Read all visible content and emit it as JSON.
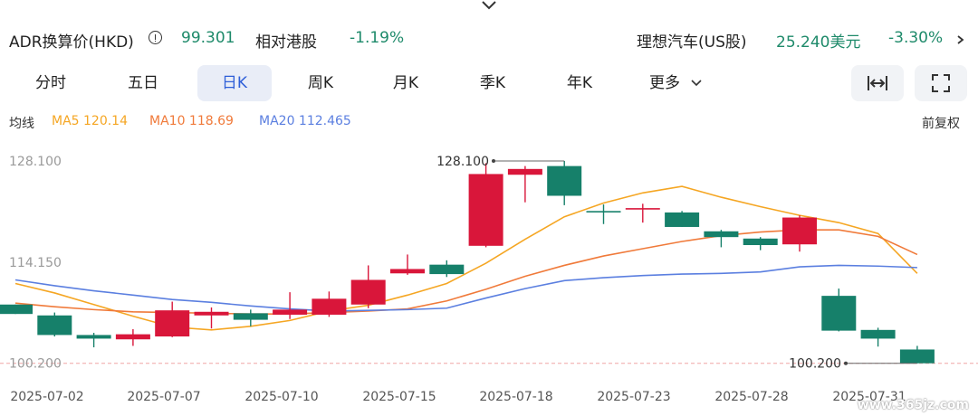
{
  "header": {
    "adr_label": "ADR换算价(HKD)",
    "adr_value": "99.301",
    "relative_label": "相对港股",
    "relative_value": "-1.19%",
    "us_stock_label": "理想汽车(US股)",
    "us_price": "25.240美元",
    "us_change": "-3.30%",
    "chevron_icon": "chevron-down-icon"
  },
  "tabs": [
    "分时",
    "五日",
    "日K",
    "周K",
    "月K",
    "季K",
    "年K",
    "更多"
  ],
  "active_tab": "日K",
  "tools": {
    "fit_icon": "fit-width-icon",
    "fullscreen_icon": "fullscreen-icon"
  },
  "ma": {
    "label": "均线",
    "ma5": "MA5 120.14",
    "ma10": "MA10 118.69",
    "ma20": "MA20 112.465",
    "adjust_label": "前复权",
    "colors": {
      "ma5": "#f5a623",
      "ma10": "#f07a3a",
      "ma20": "#5b7fe0"
    }
  },
  "watermark": "www.365jz.com",
  "chart_data": {
    "type": "candlestick",
    "ytick_labels": [
      "128.100",
      "114.150",
      "100.200"
    ],
    "yticks": [
      128.1,
      114.15,
      100.2
    ],
    "ylim": [
      99.0,
      130.5
    ],
    "xtick_labels": [
      "2025-07-02",
      "2025-07-07",
      "2025-07-10",
      "2025-07-15",
      "2025-07-18",
      "2025-07-23",
      "2025-07-28",
      "2025-07-31"
    ],
    "high_label": "128.100",
    "low_label": "100.200",
    "colors": {
      "up": "#d9163a",
      "down": "#16806a"
    },
    "candles": [
      {
        "o": 108.3,
        "c": 107.0,
        "h": 108.3,
        "l": 107.0
      },
      {
        "o": 106.8,
        "c": 104.1,
        "h": 107.2,
        "l": 103.9
      },
      {
        "o": 104.1,
        "c": 103.6,
        "h": 104.4,
        "l": 102.4
      },
      {
        "o": 103.5,
        "c": 104.2,
        "h": 104.9,
        "l": 102.6
      },
      {
        "o": 103.9,
        "c": 107.5,
        "h": 108.7,
        "l": 103.8
      },
      {
        "o": 106.8,
        "c": 107.3,
        "h": 107.9,
        "l": 105.0
      },
      {
        "o": 107.1,
        "c": 106.2,
        "h": 107.6,
        "l": 105.3
      },
      {
        "o": 106.9,
        "c": 107.6,
        "h": 110.0,
        "l": 106.3
      },
      {
        "o": 106.9,
        "c": 109.1,
        "h": 110.1,
        "l": 106.6
      },
      {
        "o": 108.3,
        "c": 111.7,
        "h": 113.7,
        "l": 107.8
      },
      {
        "o": 112.6,
        "c": 113.2,
        "h": 115.2,
        "l": 112.4
      },
      {
        "o": 113.8,
        "c": 112.5,
        "h": 114.4,
        "l": 112.1
      },
      {
        "o": 116.4,
        "c": 126.3,
        "h": 127.8,
        "l": 116.2
      },
      {
        "o": 126.2,
        "c": 127.0,
        "h": 127.4,
        "l": 122.4
      },
      {
        "o": 127.4,
        "c": 123.3,
        "h": 128.1,
        "l": 122.0
      },
      {
        "o": 121.2,
        "c": 121.0,
        "h": 122.1,
        "l": 119.4
      },
      {
        "o": 121.4,
        "c": 121.6,
        "h": 122.2,
        "l": 119.6
      },
      {
        "o": 121.0,
        "c": 119.0,
        "h": 121.2,
        "l": 119.0
      },
      {
        "o": 118.4,
        "c": 117.6,
        "h": 118.6,
        "l": 116.2
      },
      {
        "o": 117.4,
        "c": 116.5,
        "h": 117.6,
        "l": 115.8
      },
      {
        "o": 116.6,
        "c": 120.3,
        "h": 120.6,
        "l": 115.6
      },
      {
        "o": 109.5,
        "c": 104.7,
        "h": 110.5,
        "l": 104.6
      },
      {
        "o": 104.8,
        "c": 103.6,
        "h": 105.1,
        "l": 102.5
      },
      {
        "o": 102.1,
        "c": 100.2,
        "h": 102.6,
        "l": 100.2
      }
    ],
    "series": [
      {
        "name": "MA5",
        "values": [
          111.2,
          109.9,
          108.3,
          106.7,
          105.2,
          104.8,
          105.3,
          106.1,
          107.4,
          108.2,
          109.6,
          111.2,
          114.0,
          117.3,
          120.4,
          122.3,
          123.7,
          124.6,
          123.1,
          121.8,
          120.6,
          119.6,
          118.1,
          112.6
        ]
      },
      {
        "name": "MA10",
        "values": [
          108.5,
          108.0,
          107.6,
          107.3,
          107.2,
          107.1,
          107.0,
          107.0,
          107.2,
          107.4,
          107.7,
          108.8,
          110.4,
          112.2,
          113.7,
          115.0,
          116.0,
          117.0,
          117.8,
          118.3,
          118.6,
          118.6,
          117.7,
          115.2
        ]
      },
      {
        "name": "MA20",
        "values": [
          111.7,
          110.9,
          110.2,
          109.6,
          109.0,
          108.6,
          108.1,
          107.7,
          107.4,
          107.5,
          107.6,
          107.8,
          109.2,
          110.5,
          111.6,
          112.0,
          112.3,
          112.5,
          112.6,
          112.8,
          113.5,
          113.7,
          113.6,
          113.4
        ]
      }
    ]
  }
}
